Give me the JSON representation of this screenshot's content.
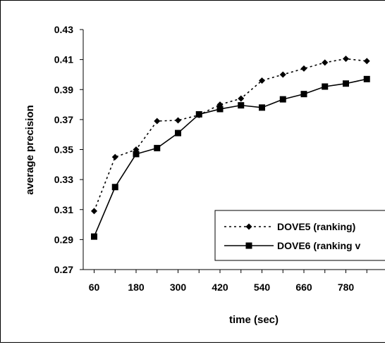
{
  "chart_data": {
    "type": "line",
    "xlabel": "time (sec)",
    "ylabel": "average precision",
    "x": [
      60,
      120,
      180,
      240,
      300,
      360,
      420,
      480,
      540,
      600,
      660,
      720,
      780,
      840
    ],
    "xticks": [
      60,
      180,
      300,
      420,
      540,
      660,
      780
    ],
    "xtick_labels": [
      "60",
      "180",
      "300",
      "420",
      "540",
      "660",
      "780"
    ],
    "yticks": [
      0.27,
      0.29,
      0.31,
      0.33,
      0.35,
      0.37,
      0.39,
      0.41,
      0.43
    ],
    "ytick_labels": [
      "0.27",
      "0.29",
      "0.31",
      "0.33",
      "0.35",
      "0.37",
      "0.39",
      "0.41",
      "0.43"
    ],
    "ylim": [
      0.27,
      0.43
    ],
    "grid": false,
    "legend_position": "bottom-right",
    "series": [
      {
        "name": "DOVE5 (ranking)",
        "line_style": "dotted",
        "marker": "diamond",
        "color": "#000000",
        "values": [
          0.309,
          0.345,
          0.35,
          0.369,
          0.3695,
          0.373,
          0.38,
          0.384,
          0.396,
          0.4,
          0.404,
          0.408,
          0.4105,
          0.409
        ]
      },
      {
        "name": "DOVE6 (ranking v",
        "line_style": "solid",
        "marker": "square",
        "color": "#000000",
        "values": [
          0.292,
          0.325,
          0.347,
          0.351,
          0.361,
          0.3735,
          0.377,
          0.3795,
          0.378,
          0.3835,
          0.387,
          0.392,
          0.394,
          0.397
        ]
      }
    ]
  }
}
